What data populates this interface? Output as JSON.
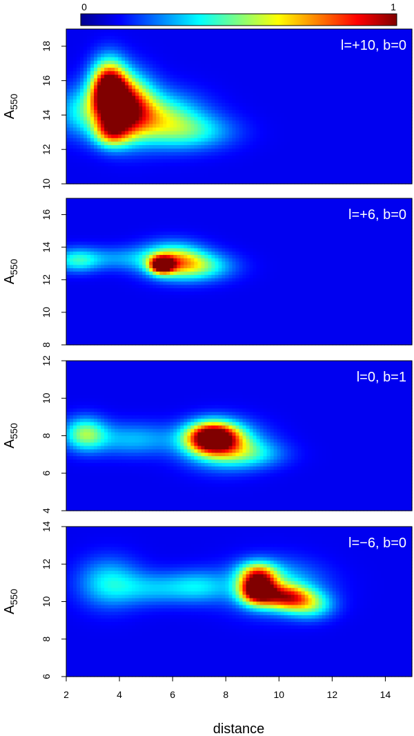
{
  "colorbar": {
    "min_label": "0",
    "max_label": "1",
    "min": 0,
    "max": 1
  },
  "chart_data": [
    {
      "type": "heatmap",
      "annotation": "l=+10, b=0",
      "xlim": [
        2,
        15
      ],
      "ylim": [
        10,
        19
      ],
      "yticks": [
        10,
        12,
        14,
        16,
        18
      ],
      "ylabel_main": "A",
      "ylabel_sub": "550",
      "blobs": [
        {
          "x": 3.6,
          "y": 15.5,
          "amp": 0.9,
          "sx": 0.45,
          "sy": 1.1
        },
        {
          "x": 4.2,
          "y": 14.5,
          "amp": 0.8,
          "sx": 0.7,
          "sy": 1.2
        },
        {
          "x": 3.7,
          "y": 13.0,
          "amp": 0.45,
          "sx": 0.45,
          "sy": 0.6
        },
        {
          "x": 5.5,
          "y": 13.8,
          "amp": 0.4,
          "sx": 1.1,
          "sy": 1.0
        },
        {
          "x": 6.8,
          "y": 13.0,
          "amp": 0.22,
          "sx": 1.1,
          "sy": 0.7
        },
        {
          "x": 2.6,
          "y": 14.2,
          "amp": 0.25,
          "sx": 0.7,
          "sy": 1.0
        }
      ]
    },
    {
      "type": "heatmap",
      "annotation": "l=+6, b=0",
      "xlim": [
        2,
        15
      ],
      "ylim": [
        8,
        17
      ],
      "yticks": [
        8,
        10,
        12,
        14,
        16
      ],
      "ylabel_main": "A",
      "ylabel_sub": "550",
      "blobs": [
        {
          "x": 5.6,
          "y": 12.9,
          "amp": 0.85,
          "sx": 0.3,
          "sy": 0.35
        },
        {
          "x": 6.0,
          "y": 13.2,
          "amp": 0.5,
          "sx": 0.8,
          "sy": 0.7
        },
        {
          "x": 7.0,
          "y": 12.8,
          "amp": 0.3,
          "sx": 0.9,
          "sy": 0.6
        },
        {
          "x": 2.4,
          "y": 13.2,
          "amp": 0.28,
          "sx": 0.6,
          "sy": 0.5
        },
        {
          "x": 4.0,
          "y": 13.3,
          "amp": 0.15,
          "sx": 1.0,
          "sy": 0.5
        }
      ]
    },
    {
      "type": "heatmap",
      "annotation": "l=0, b=1",
      "xlim": [
        2,
        15
      ],
      "ylim": [
        4,
        12
      ],
      "yticks": [
        4,
        6,
        8,
        10,
        12
      ],
      "ylabel_main": "A",
      "ylabel_sub": "550",
      "blobs": [
        {
          "x": 7.5,
          "y": 7.9,
          "amp": 0.95,
          "sx": 0.65,
          "sy": 0.55
        },
        {
          "x": 7.9,
          "y": 7.5,
          "amp": 0.4,
          "sx": 1.0,
          "sy": 0.8
        },
        {
          "x": 2.7,
          "y": 8.1,
          "amp": 0.38,
          "sx": 0.55,
          "sy": 0.6
        },
        {
          "x": 4.5,
          "y": 7.8,
          "amp": 0.2,
          "sx": 1.2,
          "sy": 0.6
        },
        {
          "x": 9.0,
          "y": 7.0,
          "amp": 0.18,
          "sx": 0.9,
          "sy": 0.5
        }
      ]
    },
    {
      "type": "heatmap",
      "annotation": "l=−6, b=0",
      "xlim": [
        2,
        15
      ],
      "ylim": [
        6,
        14
      ],
      "yticks": [
        6,
        8,
        10,
        12,
        14
      ],
      "ylabel_main": "A",
      "ylabel_sub": "550",
      "xlabel": "distance",
      "xticks": [
        2,
        4,
        6,
        8,
        10,
        12,
        14
      ],
      "blobs": [
        {
          "x": 9.2,
          "y": 10.6,
          "amp": 0.9,
          "sx": 0.45,
          "sy": 0.5
        },
        {
          "x": 9.2,
          "y": 11.5,
          "amp": 0.45,
          "sx": 0.5,
          "sy": 0.45
        },
        {
          "x": 10.3,
          "y": 10.2,
          "amp": 0.55,
          "sx": 0.6,
          "sy": 0.45
        },
        {
          "x": 11.2,
          "y": 9.8,
          "amp": 0.3,
          "sx": 0.6,
          "sy": 0.5
        },
        {
          "x": 9.8,
          "y": 10.8,
          "amp": 0.3,
          "sx": 1.2,
          "sy": 0.9
        },
        {
          "x": 3.6,
          "y": 11.0,
          "amp": 0.25,
          "sx": 0.8,
          "sy": 0.9
        },
        {
          "x": 5.3,
          "y": 10.7,
          "amp": 0.18,
          "sx": 1.0,
          "sy": 0.6
        },
        {
          "x": 7.0,
          "y": 10.8,
          "amp": 0.2,
          "sx": 0.8,
          "sy": 0.6
        }
      ]
    }
  ]
}
